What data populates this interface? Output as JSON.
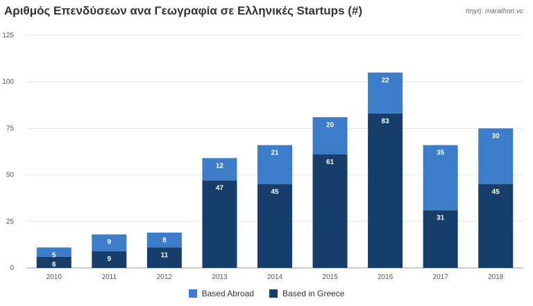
{
  "chart_data": {
    "type": "bar",
    "stacked": true,
    "title": "Αριθμός Επενδύσεων ανα Γεωγραφία σε Ελληνικές Startups (#)",
    "source": "πηγή: marathon.vc",
    "categories": [
      "2010",
      "2011",
      "2012",
      "2013",
      "2014",
      "2015",
      "2016",
      "2017",
      "2018"
    ],
    "series": [
      {
        "name": "Based in Greece",
        "color": "#173e6b",
        "values": [
          6,
          9,
          11,
          47,
          45,
          61,
          83,
          31,
          45
        ]
      },
      {
        "name": "Based Abroad",
        "color": "#3d7cc9",
        "values": [
          5,
          9,
          8,
          12,
          21,
          20,
          22,
          35,
          30
        ]
      }
    ],
    "yticks": [
      0,
      25,
      50,
      75,
      100,
      125
    ],
    "ylim": [
      0,
      125
    ],
    "grid": true,
    "legend_position": "bottom"
  }
}
